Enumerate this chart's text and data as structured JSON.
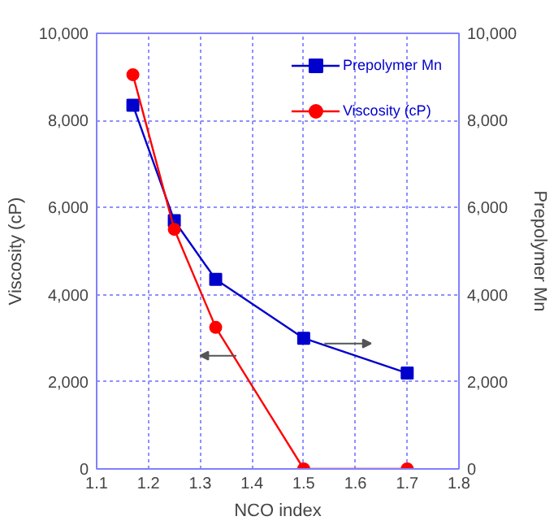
{
  "chart_data": {
    "type": "line",
    "xlabel": "NCO index",
    "ylabel": "Viscosity (cP)",
    "y2label": "Prepolymer Mn",
    "x": [
      1.17,
      1.25,
      1.33,
      1.5,
      1.7
    ],
    "series": [
      {
        "name": "Prepolymer Mn",
        "color": "#0000cc",
        "values": [
          8350,
          5700,
          4350,
          3000,
          2200
        ],
        "axis": "y2",
        "marker": "square"
      },
      {
        "name": "Viscosity (cP)",
        "color": "#ff0000",
        "values": [
          9050,
          5500,
          3250,
          0,
          0
        ],
        "marker": "circle"
      }
    ],
    "xlim": [
      1.1,
      1.8
    ],
    "xticks": [
      1.1,
      1.2,
      1.3,
      1.4,
      1.5,
      1.6,
      1.7,
      1.8
    ],
    "ylim": [
      0,
      10000
    ],
    "yticks": [
      {
        "value": 0,
        "label": "0"
      },
      {
        "value": 2000,
        "label": "2,000"
      },
      {
        "value": 4000,
        "label": "4,000"
      },
      {
        "value": 6000,
        "label": "6,000"
      },
      {
        "value": 8000,
        "label": "8,000"
      },
      {
        "value": 10000,
        "label": "10,000"
      }
    ],
    "y2lim": [
      0,
      10000
    ],
    "y2ticks": [
      {
        "value": 0,
        "label": "0"
      },
      {
        "value": 2000,
        "label": "2,000"
      },
      {
        "value": 4000,
        "label": "4,000"
      },
      {
        "value": 6000,
        "label": "6,000"
      },
      {
        "value": 8000,
        "label": "8,000"
      },
      {
        "value": 10000,
        "label": "10,000"
      }
    ],
    "grid": true,
    "legend": "top right",
    "line_style": "solid"
  }
}
